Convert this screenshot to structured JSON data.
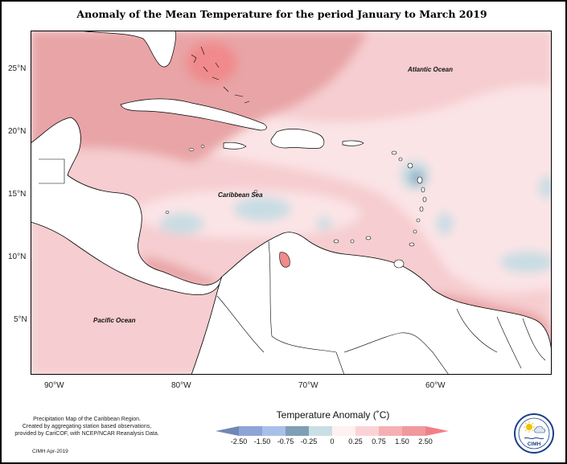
{
  "title": "Anomaly of the Mean Temperature for the period January to March 2019",
  "map": {
    "lat_labels": [
      "25°N",
      "20°N",
      "15°N",
      "10°N",
      "5°N"
    ],
    "lon_labels": [
      "90°W",
      "80°W",
      "70°W",
      "60°W"
    ],
    "regions": {
      "atlantic": "Atlantic Ocean",
      "caribbean": "Caribbean Sea",
      "pacific": "Pacific Ocean"
    },
    "colors": {
      "land": "#ffffff",
      "coast": "#000000",
      "warm_150": "#f08a8c",
      "warm_075": "#e8a4a6",
      "warm_025": "#f6cdd0",
      "warm_000": "#fbe4e6",
      "cool_025": "#c7dde3",
      "cool_075": "#7fa0b8",
      "cool_150": "#5f7fa6"
    }
  },
  "legend": {
    "title": "Temperature Anomaly (˚C)",
    "ticks": [
      "-2.50",
      "-1.50",
      "-0.75",
      "-0.25",
      "0",
      "0.25",
      "0.75",
      "1.50",
      "2.50"
    ],
    "colors": [
      "#6f87b4",
      "#8fa3d6",
      "#a9bfe9",
      "#7e9fb6",
      "#c9dfe5",
      "#fff0f1",
      "#fbd3d7",
      "#f4b0b5",
      "#f0999e",
      "#f27f86"
    ]
  },
  "credits": {
    "lines": [
      "Precipitation Map of the Caribbean Region.",
      "Created by aggregating station based observations,",
      "provided by CariCOF, with NCEP/NCAR Reanalysis Data."
    ],
    "date": "CIMH Apr-2019"
  },
  "logo": {
    "text": "CIMH"
  }
}
